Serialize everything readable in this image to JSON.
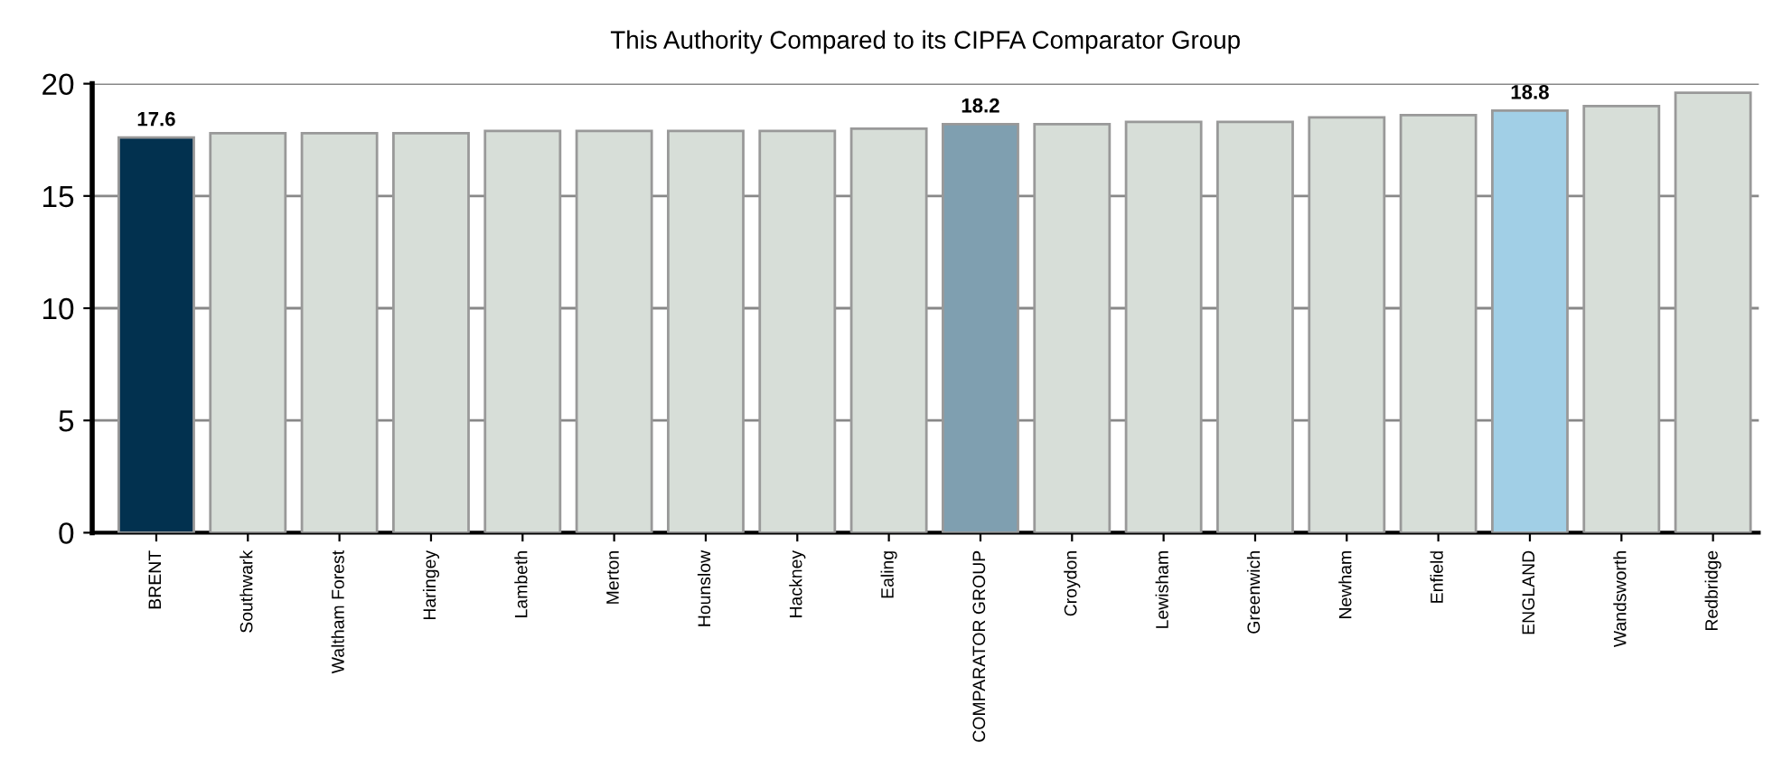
{
  "chart_data": {
    "type": "bar",
    "title": "This Authority Compared to its CIPFA Comparator Group",
    "categories": [
      "BRENT",
      "Southwark",
      "Waltham Forest",
      "Haringey",
      "Lambeth",
      "Merton",
      "Hounslow",
      "Hackney",
      "Ealing",
      "COMPARATOR GROUP",
      "Croydon",
      "Lewisham",
      "Greenwich",
      "Newham",
      "Enfield",
      "ENGLAND",
      "Wandsworth",
      "Redbridge"
    ],
    "values": [
      17.6,
      17.8,
      17.8,
      17.8,
      17.9,
      17.9,
      17.9,
      17.9,
      18.0,
      18.2,
      18.2,
      18.3,
      18.3,
      18.5,
      18.6,
      18.8,
      19.0,
      19.6
    ],
    "value_labels": [
      "17.6",
      null,
      null,
      null,
      null,
      null,
      null,
      null,
      null,
      "18.2",
      null,
      null,
      null,
      null,
      null,
      "18.8",
      null,
      null
    ],
    "colors": [
      "#02314f",
      "#d7ded8",
      "#d7ded8",
      "#d7ded8",
      "#d7ded8",
      "#d7ded8",
      "#d7ded8",
      "#d7ded8",
      "#d7ded8",
      "#7f9fb0",
      "#d7ded8",
      "#d7ded8",
      "#d7ded8",
      "#d7ded8",
      "#d7ded8",
      "#a1cfe6",
      "#d7ded8",
      "#d7ded8"
    ],
    "ylim": [
      0,
      20
    ],
    "yticks": [
      0,
      5,
      10,
      15,
      20
    ],
    "grid": "y"
  }
}
